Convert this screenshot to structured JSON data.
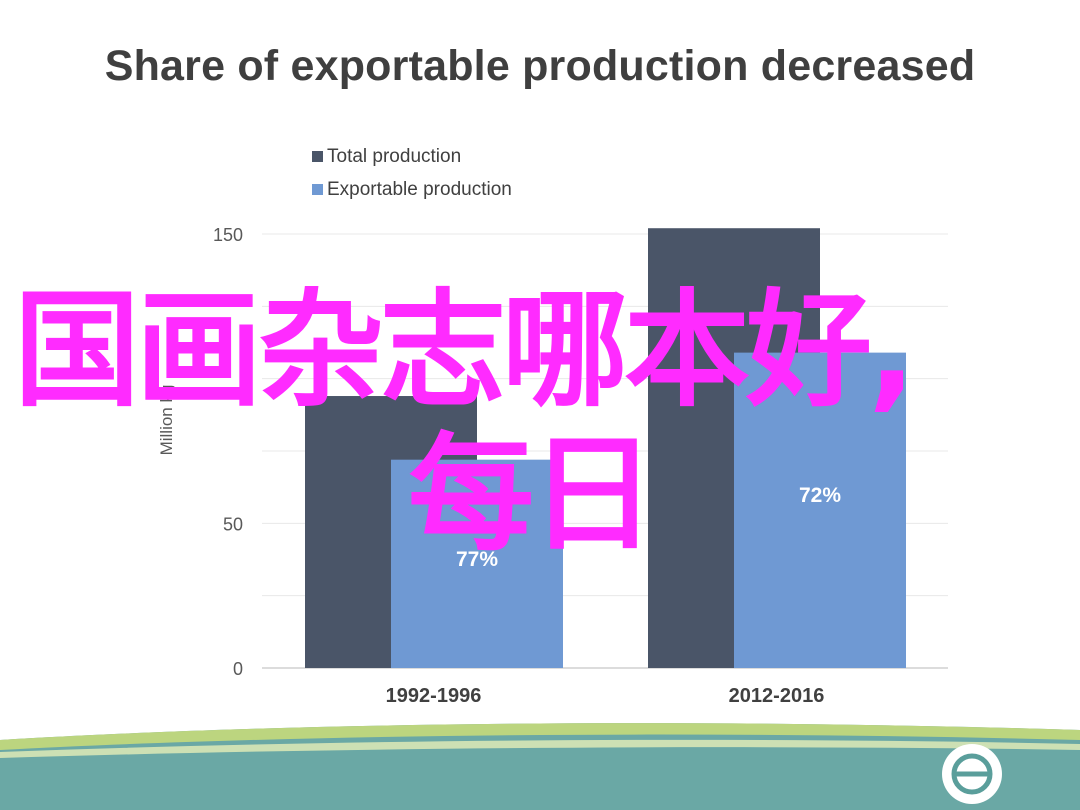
{
  "slide": {
    "title": "Share of exportable production decreased",
    "overlay_line_1": "国画杂志哪本好,",
    "overlay_line_2": "每日"
  },
  "colors": {
    "total": "#4a5568",
    "exportable": "#6f99d3",
    "title": "#3f3f3f",
    "overlay": "#ff2bff",
    "band_green": "#bcd57f",
    "band_teal": "#5a9e9b"
  },
  "chart_data": {
    "type": "bar",
    "categories": [
      "1992-1996",
      "2012-2016"
    ],
    "series": [
      {
        "name": "Total production",
        "values": [
          94,
          152
        ]
      },
      {
        "name": "Exportable production",
        "values": [
          72,
          109
        ]
      }
    ],
    "data_labels": [
      "77%",
      "72%"
    ],
    "ylabel": "Million kg",
    "ylim": [
      0,
      150
    ],
    "yticks": [
      0,
      50,
      150
    ],
    "grid": true,
    "legend": "top-left"
  }
}
